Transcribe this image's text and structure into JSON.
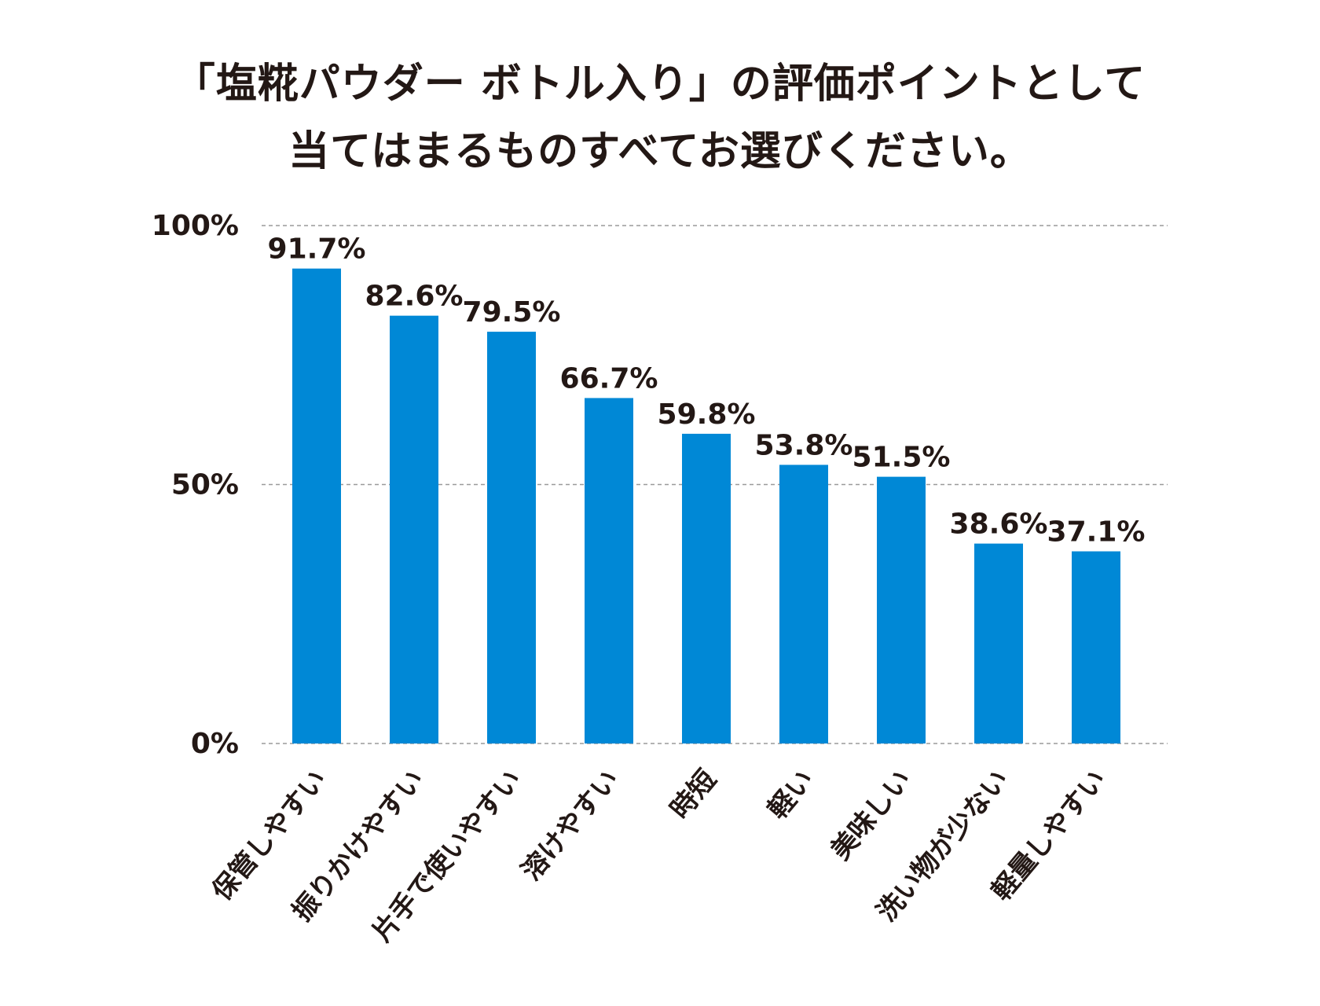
{
  "chart_data": {
    "type": "bar",
    "title_lines": [
      "「塩糀パウダー ボトル入り」の評価ポイントとして",
      "当てはまるものすべてお選びください。"
    ],
    "categories": [
      "保管しやすい",
      "振りかけやすい",
      "片手で使いやすい",
      "溶けやすい",
      "時短",
      "軽い",
      "美味しい",
      "洗い物が少ない",
      "軽量しやすい"
    ],
    "values": [
      91.7,
      82.6,
      79.5,
      66.7,
      59.8,
      53.8,
      51.5,
      38.6,
      37.1
    ],
    "value_labels": [
      "91.7%",
      "82.6%",
      "79.5%",
      "66.7%",
      "59.8%",
      "53.8%",
      "51.5%",
      "38.6%",
      "37.1%"
    ],
    "yticks": [
      {
        "value": 0,
        "label": "0%"
      },
      {
        "value": 50,
        "label": "50%"
      },
      {
        "value": 100,
        "label": "100%"
      }
    ],
    "ylim": [
      0,
      100
    ],
    "grid": true,
    "bar_color": "#0088d6",
    "grid_color": "#9a9a9a",
    "text_color": "#231815"
  }
}
